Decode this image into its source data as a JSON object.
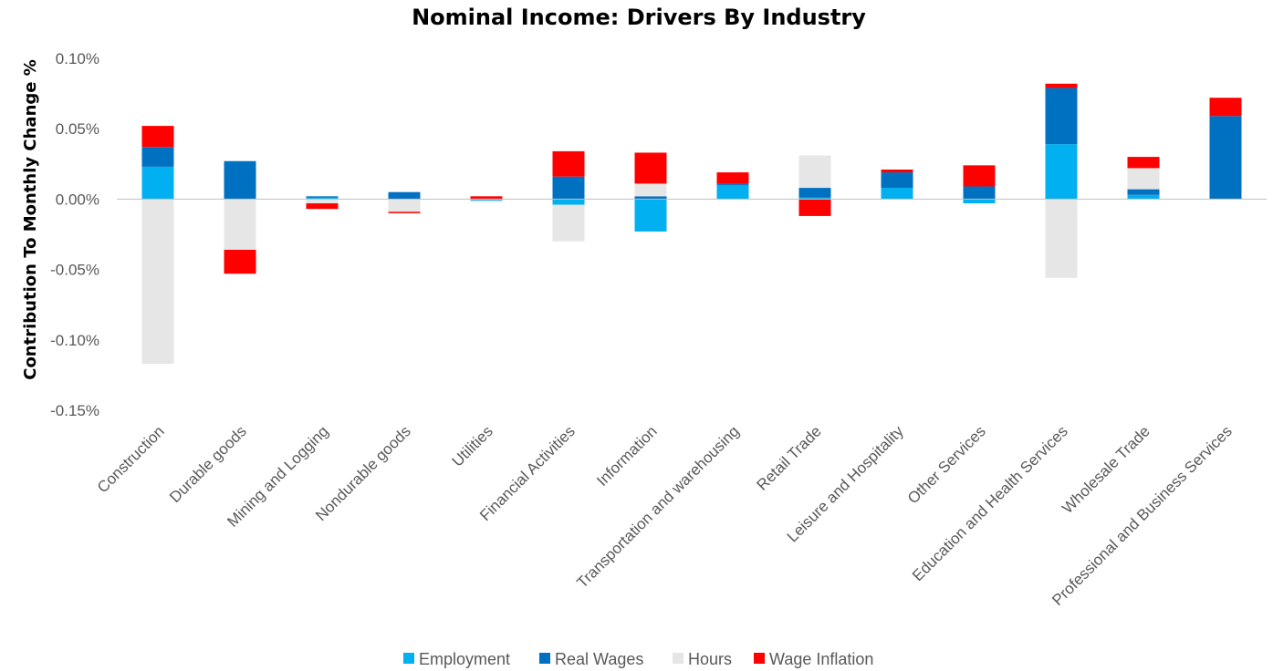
{
  "chart_data": {
    "type": "bar",
    "stacked": true,
    "title": "Nominal Income: Drivers By Industry",
    "xlabel": "",
    "ylabel": "Contribution To Monthly Change %",
    "ylim": [
      -0.15,
      0.1
    ],
    "yticks": [
      "0.10%",
      "0.05%",
      "0.00%",
      "-0.05%",
      "-0.10%",
      "-0.15%"
    ],
    "ytick_values": [
      0.1,
      0.05,
      0.0,
      -0.05,
      -0.1,
      -0.15
    ],
    "grid": false,
    "legend_position": "bottom",
    "categories": [
      "Construction",
      "Durable goods",
      "Mining and Logging",
      "Nondurable goods",
      "Utilities",
      "Financial Activities",
      "Information",
      "Transportation and warehousing",
      "Retail Trade",
      "Leisure and Hospitality",
      "Other Services",
      "Education and Health Services",
      "Wholesale Trade",
      "Professional and Business Services"
    ],
    "series": [
      {
        "name": "Employment",
        "color": "#00B0F0",
        "values": [
          0.023,
          0.0,
          0.001,
          0.0,
          -0.001,
          -0.004,
          -0.023,
          0.01,
          0.001,
          0.008,
          -0.003,
          0.039,
          0.003,
          0.0
        ]
      },
      {
        "name": "Real Wages",
        "color": "#0070C0",
        "values": [
          0.014,
          0.027,
          0.001,
          0.005,
          0.0,
          0.016,
          0.002,
          0.001,
          0.007,
          0.011,
          0.009,
          0.04,
          0.004,
          0.059
        ]
      },
      {
        "name": "Hours",
        "color": "#E7E6E6",
        "values": [
          -0.117,
          -0.036,
          -0.003,
          -0.009,
          -0.001,
          -0.026,
          0.009,
          0.0,
          0.023,
          0.0,
          0.0,
          -0.056,
          0.015,
          0.0
        ]
      },
      {
        "name": "Wage Inflation",
        "color": "#FF0000",
        "values": [
          0.015,
          -0.017,
          -0.004,
          -0.001,
          0.002,
          0.018,
          0.022,
          0.008,
          -0.012,
          0.002,
          0.015,
          0.003,
          0.008,
          0.013
        ]
      }
    ]
  }
}
